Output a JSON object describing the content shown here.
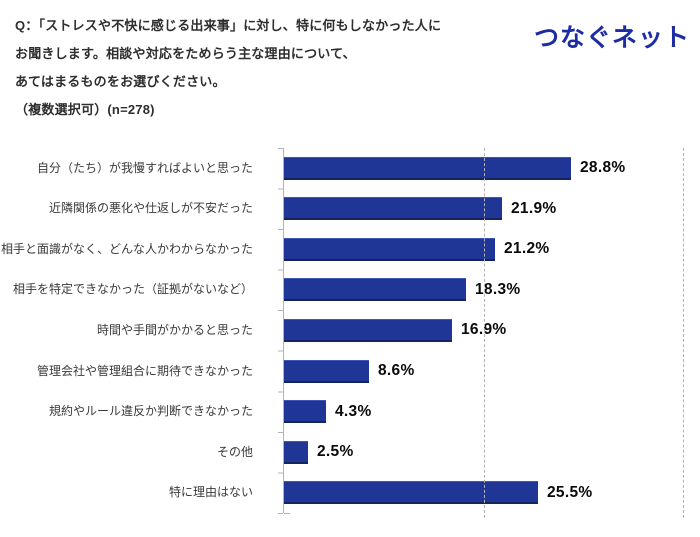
{
  "header": {
    "question_lines": [
      "Q：「ストレスや不快に感じる出来事」に対し、特に何もしなかった人に",
      "お聞きします。相談や対応をためらう主な理由について、",
      "あてはまるものをお選びください。",
      "（複数選択可）(n=278)"
    ],
    "logo_text": "つなぐネット",
    "logo_color": "#1C2CA3"
  },
  "chart_data": {
    "type": "bar",
    "orientation": "horizontal",
    "title": "Q：「ストレスや不快に感じる出来事」に対し、特に何もしなかった人にお聞きします。相談や対応をためらう主な理由について、あてはまるものをお選びください。（複数選択可）(n=278)",
    "sample_size": "n=278",
    "categories": [
      "自分（たち）が我慢すればよいと思った",
      "近隣関係の悪化や仕返しが不安だった",
      "相手と面識がなく、どんな人かわからなかった",
      "相手を特定できなかった（証拠がないなど）",
      "時間や手間がかかると思った",
      "管理会社や管理組合に期待できなかった",
      "規約やルール違反か判断できなかった",
      "その他",
      "特に理由はない"
    ],
    "values": [
      28.8,
      21.9,
      21.2,
      18.3,
      16.9,
      8.6,
      4.3,
      2.5,
      25.5
    ],
    "value_labels": [
      "28.8%",
      "21.9%",
      "21.2%",
      "18.3%",
      "16.9%",
      "8.6%",
      "4.3%",
      "2.5%",
      "25.5%"
    ],
    "xlim": [
      0,
      40
    ],
    "gridlines_pct": [
      20,
      40
    ],
    "grid_style": "dashed",
    "legend": "none",
    "bar_color": "#1F3697",
    "axis_color": "#b4b4b4"
  }
}
